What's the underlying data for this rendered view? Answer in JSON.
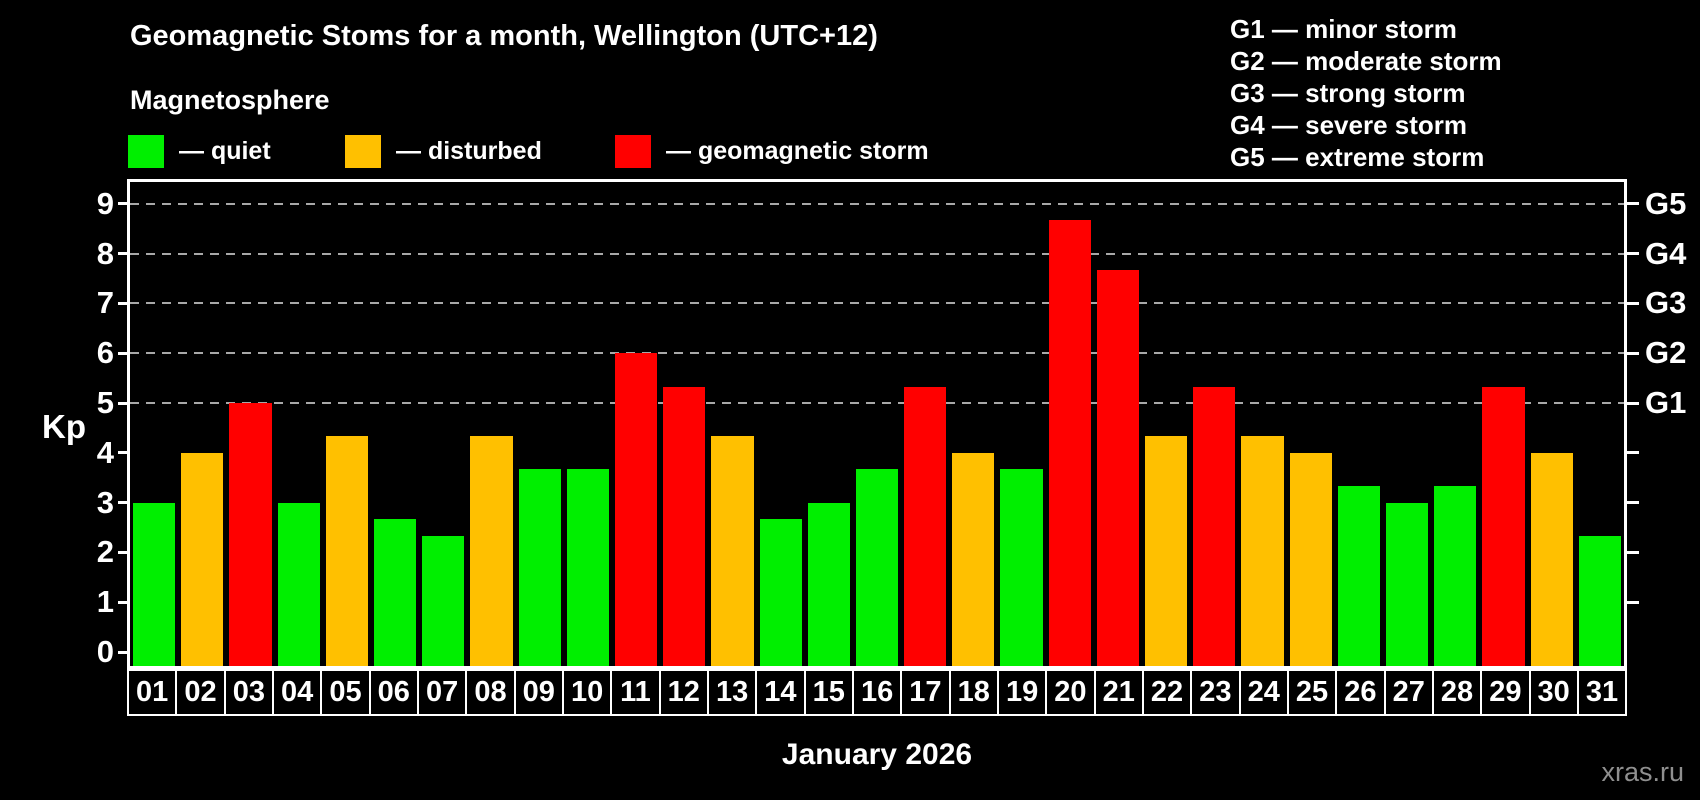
{
  "header": {
    "title": "Geomagnetic Stoms for a month, Wellington (UTC+12)",
    "subtitle": "Magnetosphere"
  },
  "legend": {
    "items": [
      {
        "name": "quiet",
        "label": "— quiet",
        "color": "#00ef00"
      },
      {
        "name": "disturbed",
        "label": "— disturbed",
        "color": "#ffc000"
      },
      {
        "name": "storm",
        "label": "— geomagnetic storm",
        "color": "#ff0000"
      }
    ]
  },
  "g_legend": {
    "items": [
      "G1 — minor storm",
      "G2 — moderate storm",
      "G3 — strong storm",
      "G4 — severe storm",
      "G5 — extreme storm"
    ]
  },
  "axis": {
    "y_label": "Kp",
    "x_label": "January 2026",
    "y_ticks": [
      0,
      1,
      2,
      3,
      4,
      5,
      6,
      7,
      8,
      9
    ],
    "grid_levels": [
      5,
      6,
      7,
      8,
      9
    ],
    "right_ticks": [
      1,
      2,
      3,
      4,
      5,
      6,
      7,
      8,
      9
    ],
    "g_scale": [
      {
        "kp": 9,
        "label": "G5"
      },
      {
        "kp": 8,
        "label": "G4"
      },
      {
        "kp": 7,
        "label": "G3"
      },
      {
        "kp": 6,
        "label": "G2"
      },
      {
        "kp": 5,
        "label": "G1"
      }
    ]
  },
  "watermark": "xras.ru",
  "colors": {
    "background": "#000000",
    "text": "#ffffff",
    "grid": "#a8a8a8",
    "axis": "#ffffff",
    "watermark": "#8f8f8f",
    "quiet": "#00ef00",
    "disturbed": "#ffc000",
    "storm": "#ff0000"
  },
  "chart_data": {
    "type": "bar",
    "title": "Geomagnetic Stoms for a month, Wellington (UTC+12)",
    "subtitle": "Magnetosphere",
    "xlabel": "January 2026",
    "ylabel": "Kp",
    "ylim": [
      0,
      9.5
    ],
    "grid": "horizontal dashed lines at Kp 5,6,7,8,9",
    "legend_position": "top-left",
    "right_axis_labels": {
      "G1": 5,
      "G2": 6,
      "G3": 7,
      "G4": 8,
      "G5": 9
    },
    "categories": [
      "01",
      "02",
      "03",
      "04",
      "05",
      "06",
      "07",
      "08",
      "09",
      "10",
      "11",
      "12",
      "13",
      "14",
      "15",
      "16",
      "17",
      "18",
      "19",
      "20",
      "21",
      "22",
      "23",
      "24",
      "25",
      "26",
      "27",
      "28",
      "29",
      "30",
      "31"
    ],
    "values": [
      3.0,
      4.0,
      5.0,
      3.0,
      4.33,
      2.67,
      2.33,
      4.33,
      3.67,
      3.67,
      6.0,
      5.33,
      4.33,
      2.67,
      3.0,
      3.67,
      5.33,
      4.0,
      3.67,
      8.67,
      7.67,
      4.33,
      5.33,
      4.33,
      4.0,
      3.33,
      3.0,
      3.33,
      5.33,
      4.0,
      2.33
    ],
    "statuses": [
      "quiet",
      "disturbed",
      "storm",
      "quiet",
      "disturbed",
      "quiet",
      "quiet",
      "disturbed",
      "quiet",
      "quiet",
      "storm",
      "storm",
      "disturbed",
      "quiet",
      "quiet",
      "quiet",
      "storm",
      "disturbed",
      "quiet",
      "storm",
      "storm",
      "disturbed",
      "storm",
      "disturbed",
      "disturbed",
      "quiet",
      "quiet",
      "quiet",
      "storm",
      "disturbed",
      "quiet"
    ]
  }
}
